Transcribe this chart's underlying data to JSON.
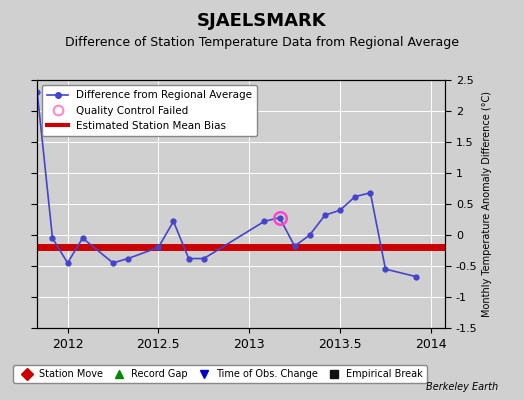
{
  "title": "SJAELSMARK",
  "subtitle": "Difference of Station Temperature Data from Regional Average",
  "ylabel_right": "Monthly Temperature Anomaly Difference (°C)",
  "watermark": "Berkeley Earth",
  "xlim": [
    2011.83,
    2014.08
  ],
  "ylim": [
    -1.5,
    2.5
  ],
  "xticks": [
    2012.0,
    2012.5,
    2013.0,
    2013.5,
    2014.0
  ],
  "yticks": [
    -1.5,
    -1.0,
    -0.5,
    0.0,
    0.5,
    1.0,
    1.5,
    2.0,
    2.5
  ],
  "background_color": "#d0d0d0",
  "plot_bg_color": "#d0d0d0",
  "line_color": "#4444cc",
  "bias_color": "#cc0000",
  "bias_y": -0.2,
  "main_x": [
    2011.833,
    2011.917,
    2012.0,
    2012.083,
    2012.25,
    2012.333,
    2012.5,
    2012.583,
    2012.667,
    2012.75,
    2013.083,
    2013.167,
    2013.25,
    2013.333,
    2013.417,
    2013.5,
    2013.583,
    2013.667,
    2013.75,
    2013.917
  ],
  "main_y": [
    2.3,
    -0.05,
    -0.45,
    -0.05,
    -0.45,
    -0.38,
    -0.2,
    0.22,
    -0.38,
    -0.38,
    0.22,
    0.28,
    -0.18,
    0.0,
    0.32,
    0.4,
    0.62,
    0.68,
    -0.55,
    -0.67
  ],
  "qc_x": 2013.167,
  "qc_y": 0.28,
  "grid_color": "#ffffff",
  "title_fontsize": 13,
  "subtitle_fontsize": 9,
  "legend1_items": [
    {
      "label": "Difference from Regional Average",
      "color": "#4444cc"
    },
    {
      "label": "Quality Control Failed",
      "color": "#ff88cc"
    },
    {
      "label": "Estimated Station Mean Bias",
      "color": "#cc0000"
    }
  ],
  "legend2_items": [
    {
      "label": "Station Move",
      "color": "#cc0000",
      "marker": "D"
    },
    {
      "label": "Record Gap",
      "color": "#008800",
      "marker": "^"
    },
    {
      "label": "Time of Obs. Change",
      "color": "#0000cc",
      "marker": "v"
    },
    {
      "label": "Empirical Break",
      "color": "#111111",
      "marker": "s"
    }
  ]
}
